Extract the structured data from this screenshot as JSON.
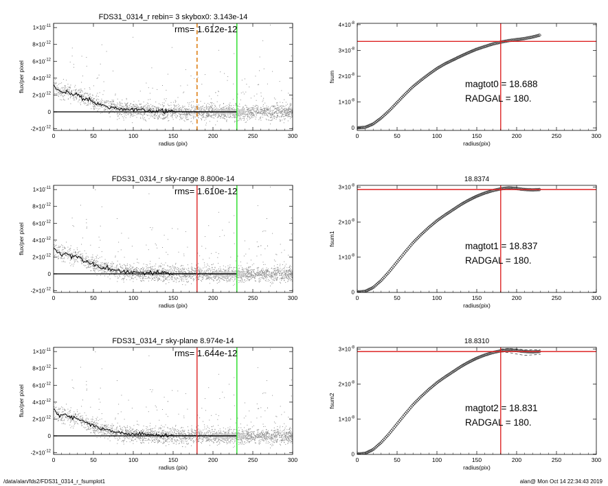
{
  "footer": {
    "left": "/data/alan/fds2/FDS31_0314_r_fsumplot1",
    "right": "alan@  Mon Oct 14 22:34:43 2019"
  },
  "chart_data": [
    {
      "type": "scatter",
      "title": "FDS31_0314_r rebin= 3    skybox0:  3.143e-14",
      "annotations": [
        "rms= 1.612e-12"
      ],
      "xlabel": "radius (pix)",
      "ylabel": "flux/per pixel",
      "xlim": [
        0,
        300
      ],
      "ylim": [
        -2.2e-12,
        1.05e-11
      ],
      "xticks": [
        0,
        50,
        100,
        150,
        200,
        250,
        300
      ],
      "yticks": [
        {
          "v": 1e-11,
          "m": "1×10",
          "e": "-11"
        },
        {
          "v": 8e-12,
          "m": "8×10",
          "e": "-12"
        },
        {
          "v": 6e-12,
          "m": "6×10",
          "e": "-12"
        },
        {
          "v": 4e-12,
          "m": "4×10",
          "e": "-12"
        },
        {
          "v": 2e-12,
          "m": "2×10",
          "e": "-12"
        },
        {
          "v": 0,
          "m": "0",
          "e": ""
        },
        {
          "v": -2e-12,
          "m": "-2×10",
          "e": "-12"
        }
      ],
      "vlines": [
        {
          "x": 180,
          "color": "#e08a2a",
          "dashed": true
        },
        {
          "x": 230,
          "color": "#22dd22",
          "dashed": false
        }
      ],
      "profile": {
        "x": [
          0,
          5,
          10,
          15,
          20,
          30,
          40,
          50,
          60,
          70,
          80,
          100,
          120,
          150,
          180,
          230
        ],
        "y": [
          3.2e-12,
          2.5e-12,
          2.4e-12,
          2.5e-12,
          2.2e-12,
          2e-12,
          1.6e-12,
          1.2e-12,
          8e-13,
          6e-13,
          4e-13,
          2e-13,
          1e-13,
          3e-14,
          0,
          0
        ]
      },
      "zero_line": [
        0,
        230
      ]
    },
    {
      "type": "line",
      "title": "",
      "annotations": [
        "magtot0 =  18.688",
        "RADGAL =    180."
      ],
      "xlabel": "radius(pix)",
      "ylabel": "fsum",
      "xlim": [
        0,
        300
      ],
      "ylim": [
        -1e-09,
        4.05e-08
      ],
      "xticks": [
        0,
        50,
        100,
        150,
        200,
        250,
        300
      ],
      "yticks": [
        {
          "v": 4e-08,
          "m": "4×10",
          "e": "-8"
        },
        {
          "v": 3e-08,
          "m": "3×10",
          "e": "-8"
        },
        {
          "v": 2e-08,
          "m": "2×10",
          "e": "-8"
        },
        {
          "v": 1e-08,
          "m": "1×10",
          "e": "-8"
        },
        {
          "v": 0,
          "m": "0",
          "e": ""
        }
      ],
      "hline": 3.35e-08,
      "vline": 180,
      "x": [
        0,
        10,
        20,
        30,
        40,
        50,
        60,
        70,
        80,
        90,
        100,
        110,
        120,
        130,
        140,
        150,
        160,
        170,
        180,
        190,
        200,
        210,
        220,
        230
      ],
      "y": [
        0,
        2e-10,
        1.5e-09,
        3.8e-09,
        6.6e-09,
        9.8e-09,
        1.3e-08,
        1.6e-08,
        1.85e-08,
        2.08e-08,
        2.3e-08,
        2.48e-08,
        2.63e-08,
        2.78e-08,
        2.92e-08,
        3.05e-08,
        3.15e-08,
        3.25e-08,
        3.32e-08,
        3.38e-08,
        3.42e-08,
        3.46e-08,
        3.52e-08,
        3.6e-08
      ]
    },
    {
      "type": "scatter",
      "title": "FDS31_0314_r sky-range  8.800e-14",
      "annotations": [
        "rms= 1.610e-12"
      ],
      "xlabel": "radius (pix)",
      "ylabel": "flux/per pixel",
      "xlim": [
        0,
        300
      ],
      "ylim": [
        -2.2e-12,
        1.05e-11
      ],
      "xticks": [
        0,
        50,
        100,
        150,
        200,
        250,
        300
      ],
      "yticks": [
        {
          "v": 1e-11,
          "m": "1×10",
          "e": "-11"
        },
        {
          "v": 8e-12,
          "m": "8×10",
          "e": "-12"
        },
        {
          "v": 6e-12,
          "m": "6×10",
          "e": "-12"
        },
        {
          "v": 4e-12,
          "m": "4×10",
          "e": "-12"
        },
        {
          "v": 2e-12,
          "m": "2×10",
          "e": "-12"
        },
        {
          "v": 0,
          "m": "0",
          "e": ""
        },
        {
          "v": -2e-12,
          "m": "-2×10",
          "e": "-12"
        }
      ],
      "vlines": [
        {
          "x": 180,
          "color": "#dd2222",
          "dashed": false
        },
        {
          "x": 230,
          "color": "#22dd22",
          "dashed": false
        }
      ],
      "profile": {
        "x": [
          0,
          5,
          10,
          15,
          20,
          30,
          40,
          50,
          60,
          70,
          80,
          100,
          120,
          150,
          180,
          230
        ],
        "y": [
          3.2e-12,
          2.5e-12,
          2.4e-12,
          2.5e-12,
          2.2e-12,
          2e-12,
          1.6e-12,
          1.2e-12,
          8e-13,
          6e-13,
          4e-13,
          2e-13,
          1e-13,
          3e-14,
          0,
          0
        ]
      },
      "zero_line": [
        0,
        230
      ]
    },
    {
      "type": "line",
      "title": "18.8374",
      "annotations": [
        "magtot1 =  18.837",
        "RADGAL =    180."
      ],
      "xlabel": "radius(pix)",
      "ylabel": "fsum1",
      "xlim": [
        0,
        300
      ],
      "ylim": [
        -1e-10,
        3.05e-08
      ],
      "xticks": [
        0,
        50,
        100,
        150,
        200,
        250,
        300
      ],
      "yticks": [
        {
          "v": 3e-08,
          "m": "3×10",
          "e": "-8"
        },
        {
          "v": 2e-08,
          "m": "2×10",
          "e": "-8"
        },
        {
          "v": 1e-08,
          "m": "1×10",
          "e": "-8"
        },
        {
          "v": 0,
          "m": "0",
          "e": ""
        }
      ],
      "hline": 2.93e-08,
      "vline": 180,
      "x": [
        0,
        10,
        20,
        30,
        40,
        50,
        60,
        70,
        80,
        90,
        100,
        110,
        120,
        130,
        140,
        150,
        160,
        170,
        180,
        190,
        200,
        210,
        220,
        230
      ],
      "y": [
        0,
        2e-10,
        1.3e-09,
        3.3e-09,
        5.8e-09,
        8.6e-09,
        1.14e-08,
        1.41e-08,
        1.64e-08,
        1.85e-08,
        2.04e-08,
        2.2e-08,
        2.35e-08,
        2.5e-08,
        2.63e-08,
        2.74e-08,
        2.83e-08,
        2.9e-08,
        2.95e-08,
        2.98e-08,
        2.96e-08,
        2.93e-08,
        2.92e-08,
        2.93e-08
      ]
    },
    {
      "type": "scatter",
      "title": "FDS31_0314_r sky-plane  8.974e-14",
      "annotations": [
        "rms= 1.644e-12"
      ],
      "xlabel": "radius (pix)",
      "ylabel": "flux/per pixel",
      "xlim": [
        0,
        300
      ],
      "ylim": [
        -2.2e-12,
        1.05e-11
      ],
      "xticks": [
        0,
        50,
        100,
        150,
        200,
        250,
        300
      ],
      "yticks": [
        {
          "v": 1e-11,
          "m": "1×10",
          "e": "-11"
        },
        {
          "v": 8e-12,
          "m": "8×10",
          "e": "-12"
        },
        {
          "v": 6e-12,
          "m": "6×10",
          "e": "-12"
        },
        {
          "v": 4e-12,
          "m": "4×10",
          "e": "-12"
        },
        {
          "v": 2e-12,
          "m": "2×10",
          "e": "-12"
        },
        {
          "v": 0,
          "m": "0",
          "e": ""
        },
        {
          "v": -2e-12,
          "m": "-2×10",
          "e": "-12"
        }
      ],
      "vlines": [
        {
          "x": 180,
          "color": "#dd2222",
          "dashed": false
        },
        {
          "x": 230,
          "color": "#22dd22",
          "dashed": false
        }
      ],
      "profile": {
        "x": [
          0,
          5,
          10,
          15,
          20,
          30,
          40,
          50,
          60,
          70,
          80,
          100,
          120,
          150,
          180,
          230
        ],
        "y": [
          3.2e-12,
          2.5e-12,
          2.4e-12,
          2.5e-12,
          2.2e-12,
          2e-12,
          1.6e-12,
          1.2e-12,
          8e-13,
          6e-13,
          4e-13,
          2e-13,
          1e-13,
          3e-14,
          0,
          0
        ]
      },
      "zero_line": [
        0,
        230
      ]
    },
    {
      "type": "line",
      "title": "18.8310",
      "annotations": [
        "magtot2 =  18.831",
        "RADGAL =    180."
      ],
      "xlabel": "radius(pix)",
      "ylabel": "fsum2",
      "xlim": [
        0,
        300
      ],
      "ylim": [
        -1e-10,
        3.05e-08
      ],
      "xticks": [
        0,
        50,
        100,
        150,
        200,
        250,
        300
      ],
      "yticks": [
        {
          "v": 3e-08,
          "m": "3×10",
          "e": "-8"
        },
        {
          "v": 2e-08,
          "m": "2×10",
          "e": "-8"
        },
        {
          "v": 1e-08,
          "m": "1×10",
          "e": "-8"
        },
        {
          "v": 0,
          "m": "0",
          "e": ""
        }
      ],
      "hline": 2.93e-08,
      "vline": 180,
      "x": [
        0,
        10,
        20,
        30,
        40,
        50,
        60,
        70,
        80,
        90,
        100,
        110,
        120,
        130,
        140,
        150,
        160,
        170,
        180,
        190,
        200,
        210,
        220,
        230
      ],
      "y": [
        0,
        2e-10,
        1.3e-09,
        3.3e-09,
        5.8e-09,
        8.6e-09,
        1.14e-08,
        1.41e-08,
        1.64e-08,
        1.85e-08,
        2.04e-08,
        2.2e-08,
        2.35e-08,
        2.5e-08,
        2.63e-08,
        2.74e-08,
        2.83e-08,
        2.9e-08,
        2.95e-08,
        2.98e-08,
        2.96e-08,
        2.93e-08,
        2.92e-08,
        2.93e-08
      ],
      "band": {
        "upper": [
          3e-08,
          3.02e-08,
          3e-08,
          2.98e-08,
          2.98e-08
        ],
        "lower": [
          2.92e-08,
          2.9e-08,
          2.86e-08,
          2.82e-08,
          2.85e-08
        ],
        "x": [
          180,
          190,
          200,
          210,
          230
        ]
      }
    }
  ]
}
